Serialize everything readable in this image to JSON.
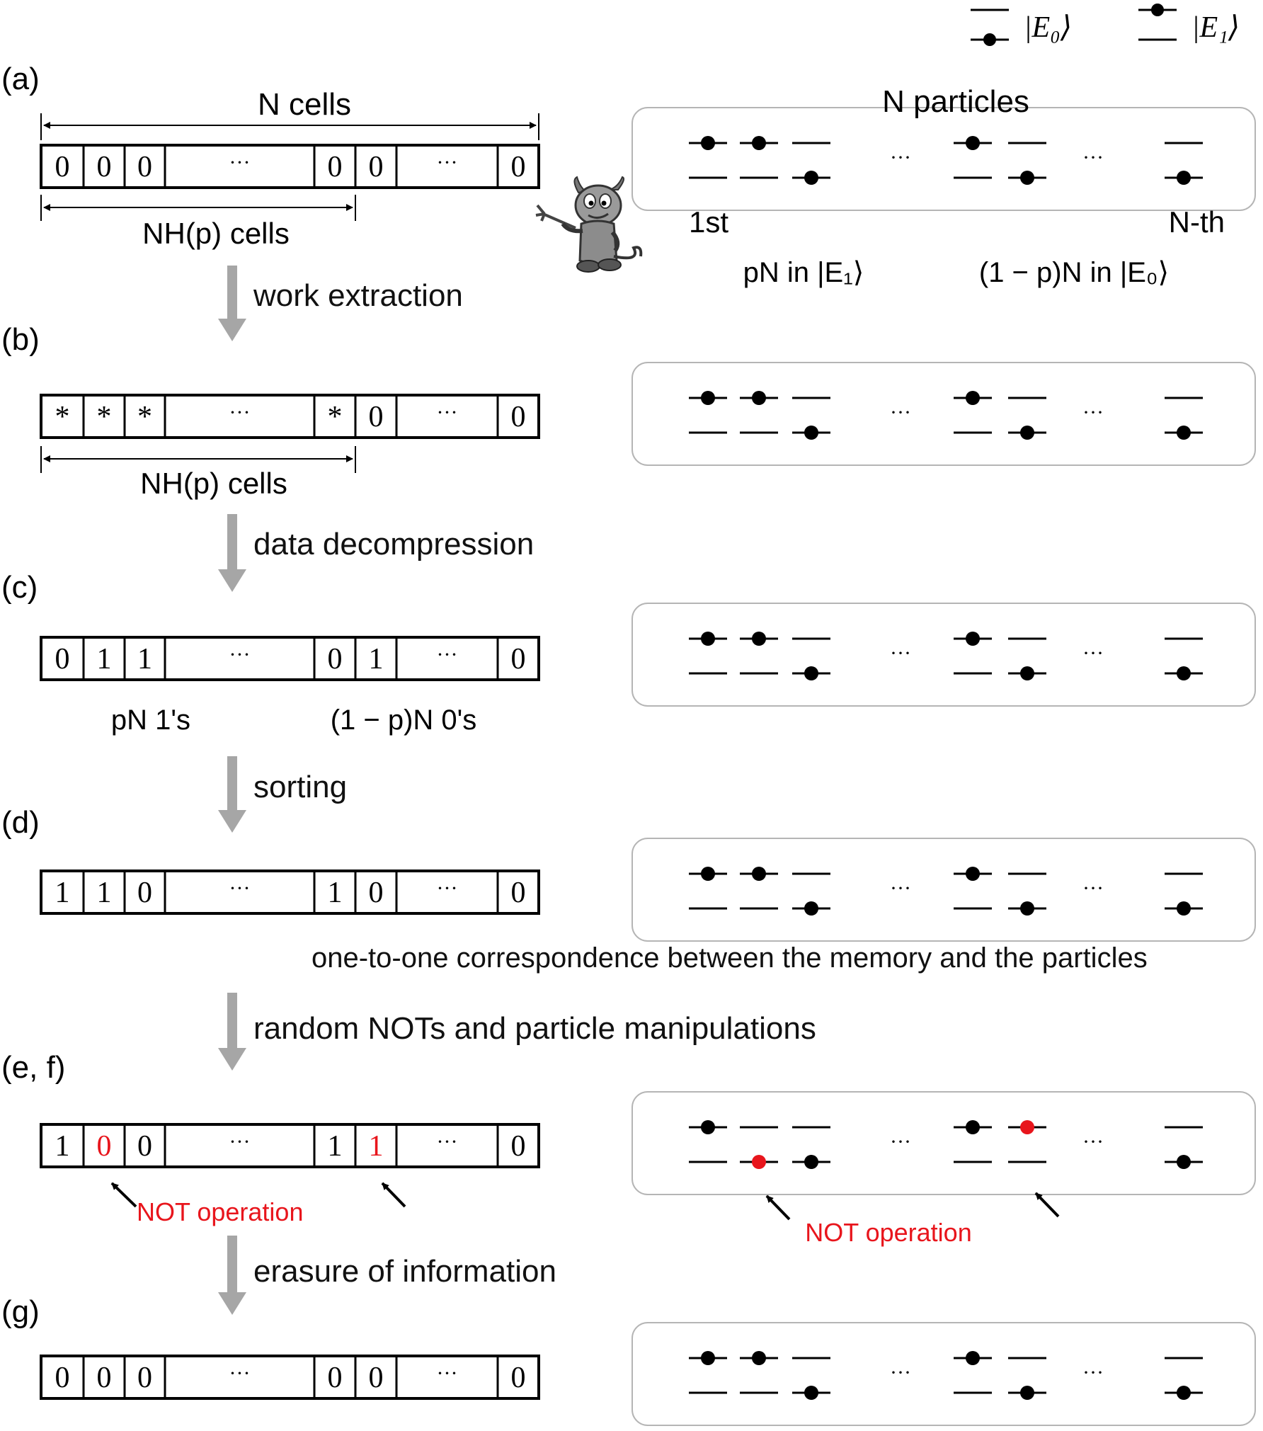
{
  "legend": {
    "ground_label": "|E₀⟩",
    "excited_label": "|E₁⟩"
  },
  "colors": {
    "black": "#000000",
    "red": "#e8151c",
    "arrow_gray": "#a6a6a6",
    "panel_border": "#b5b5b5"
  },
  "dots": "···",
  "panels": [
    {
      "id": "a",
      "label": "(a)",
      "cells": [
        "0",
        "0",
        "0",
        "···",
        "0",
        "0",
        "···",
        "0"
      ],
      "red_cells": [],
      "particles": [
        "up",
        "up",
        "down",
        "dots",
        "up",
        "down",
        "dots",
        "down"
      ],
      "red_particles": []
    },
    {
      "id": "b",
      "label": "(b)",
      "cells": [
        "*",
        "*",
        "*",
        "···",
        "*",
        "0",
        "···",
        "0"
      ],
      "red_cells": [],
      "particles": [
        "up",
        "up",
        "down",
        "dots",
        "up",
        "down",
        "dots",
        "down"
      ],
      "red_particles": []
    },
    {
      "id": "c",
      "label": "(c)",
      "cells": [
        "0",
        "1",
        "1",
        "···",
        "0",
        "1",
        "···",
        "0"
      ],
      "red_cells": [],
      "particles": [
        "up",
        "up",
        "down",
        "dots",
        "up",
        "down",
        "dots",
        "down"
      ],
      "red_particles": []
    },
    {
      "id": "d",
      "label": "(d)",
      "cells": [
        "1",
        "1",
        "0",
        "···",
        "1",
        "0",
        "···",
        "0"
      ],
      "red_cells": [],
      "particles": [
        "up",
        "up",
        "down",
        "dots",
        "up",
        "down",
        "dots",
        "down"
      ],
      "red_particles": []
    },
    {
      "id": "ef",
      "label": "(e, f)",
      "cells": [
        "1",
        "0",
        "0",
        "···",
        "1",
        "1",
        "···",
        "0"
      ],
      "red_cells": [
        1,
        5
      ],
      "particles": [
        "up",
        "down",
        "down",
        "dots",
        "up",
        "up",
        "dots",
        "down"
      ],
      "red_particles": [
        1,
        5
      ]
    },
    {
      "id": "g",
      "label": "(g)",
      "cells": [
        "0",
        "0",
        "0",
        "···",
        "0",
        "0",
        "···",
        "0"
      ],
      "red_cells": [],
      "particles": [
        "up",
        "up",
        "down",
        "dots",
        "up",
        "down",
        "dots",
        "down"
      ],
      "red_particles": []
    }
  ],
  "annotations": {
    "n_cells": "N cells",
    "nhp_cells_a": "NH(p) cells",
    "nhp_cells_b": "NH(p) cells",
    "n_particles": "N particles",
    "first": "1st",
    "nth": "N-th",
    "pn_in_e1": "pN in |E₁⟩",
    "one_minus_pn_in_e0": "(1 − p)N in |E₀⟩",
    "pn_ones": "pN 1's",
    "one_minus_pn_zeros": "(1 − p)N 0's",
    "correspondence": "one-to-one correspondence between the memory and the particles",
    "not_operation_memory": "NOT operation",
    "not_operation_particles": "NOT operation"
  },
  "steps": [
    "work extraction",
    "data decompression",
    "sorting",
    "random NOTs and particle manipulations",
    "erasure of information"
  ],
  "demon": "devil-mascot"
}
